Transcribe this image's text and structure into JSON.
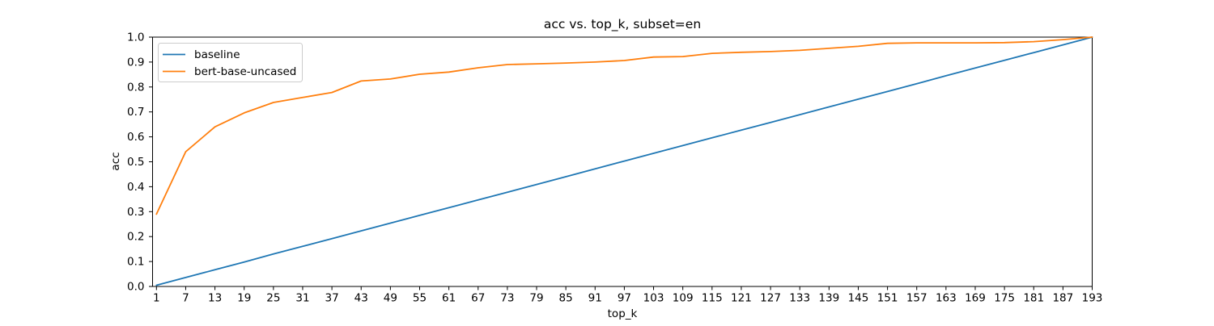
{
  "chart_data": {
    "type": "line",
    "title": "acc vs. top_k, subset=en",
    "xlabel": "top_k",
    "ylabel": "acc",
    "x": [
      1,
      7,
      13,
      19,
      25,
      31,
      37,
      43,
      49,
      55,
      61,
      67,
      73,
      79,
      85,
      91,
      97,
      103,
      109,
      115,
      121,
      127,
      133,
      139,
      145,
      151,
      157,
      163,
      169,
      175,
      181,
      187,
      193
    ],
    "xtick_labels": [
      "1",
      "7",
      "13",
      "19",
      "25",
      "31",
      "37",
      "43",
      "49",
      "55",
      "61",
      "67",
      "73",
      "79",
      "85",
      "91",
      "97",
      "103",
      "109",
      "115",
      "121",
      "127",
      "133",
      "139",
      "145",
      "151",
      "157",
      "163",
      "169",
      "175",
      "181",
      "187",
      "193"
    ],
    "yticks": [
      0.0,
      0.1,
      0.2,
      0.3,
      0.4,
      0.5,
      0.6,
      0.7,
      0.8,
      0.9,
      1.0
    ],
    "ytick_labels": [
      "0.0",
      "0.1",
      "0.2",
      "0.3",
      "0.4",
      "0.5",
      "0.6",
      "0.7",
      "0.8",
      "0.9",
      "1.0"
    ],
    "xlim": [
      0.2,
      193
    ],
    "ylim": [
      0.0,
      1.0
    ],
    "grid": false,
    "legend_position": "upper left",
    "axis_color": "#000000",
    "text_color": "#000000",
    "series": [
      {
        "name": "baseline",
        "color": "#1f77b4",
        "values": [
          0.005,
          0.036,
          0.067,
          0.098,
          0.13,
          0.161,
          0.192,
          0.223,
          0.254,
          0.285,
          0.316,
          0.347,
          0.378,
          0.409,
          0.44,
          0.472,
          0.503,
          0.534,
          0.565,
          0.596,
          0.627,
          0.658,
          0.689,
          0.72,
          0.751,
          0.782,
          0.813,
          0.845,
          0.876,
          0.907,
          0.938,
          0.969,
          1.0
        ]
      },
      {
        "name": "bert-base-uncased",
        "color": "#ff7f0e",
        "values": [
          0.29,
          0.54,
          0.64,
          0.696,
          0.738,
          0.758,
          0.778,
          0.824,
          0.832,
          0.851,
          0.86,
          0.877,
          0.89,
          0.893,
          0.896,
          0.9,
          0.906,
          0.92,
          0.922,
          0.935,
          0.939,
          0.942,
          0.947,
          0.955,
          0.963,
          0.975,
          0.977,
          0.977,
          0.977,
          0.978,
          0.982,
          0.99,
          1.0
        ]
      }
    ]
  }
}
